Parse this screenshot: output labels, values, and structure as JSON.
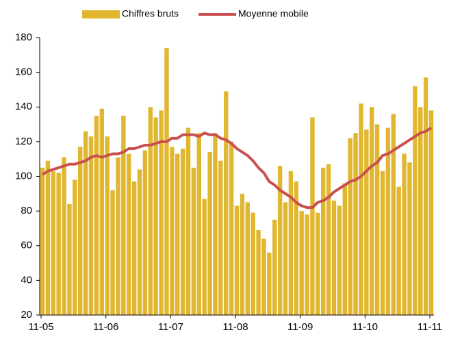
{
  "chart_data": {
    "type": "bar-line",
    "categories": [
      "11-05",
      null,
      null,
      null,
      null,
      null,
      null,
      null,
      null,
      null,
      null,
      null,
      "11-06",
      null,
      null,
      null,
      null,
      null,
      null,
      null,
      null,
      null,
      null,
      null,
      "11-07",
      null,
      null,
      null,
      null,
      null,
      null,
      null,
      null,
      null,
      null,
      null,
      "11-08",
      null,
      null,
      null,
      null,
      null,
      null,
      null,
      null,
      null,
      null,
      null,
      "11-09",
      null,
      null,
      null,
      null,
      null,
      null,
      null,
      null,
      null,
      null,
      null,
      "11-10",
      null,
      null,
      null,
      null,
      null,
      null,
      null,
      null,
      null,
      null,
      null,
      "11-11"
    ],
    "series": [
      {
        "name": "Chiffres bruts",
        "color": "#e0b72f",
        "kind": "bar",
        "values": [
          105,
          109,
          103,
          102,
          111,
          84,
          98,
          117,
          126,
          123,
          135,
          139,
          123,
          92,
          111,
          135,
          113,
          97,
          104,
          115,
          140,
          134,
          138,
          174,
          117,
          113,
          116,
          128,
          105,
          125,
          87,
          114,
          125,
          109,
          149,
          120,
          83,
          90,
          85,
          79,
          69,
          64,
          56,
          75,
          106,
          85,
          103,
          97,
          80,
          78,
          134,
          79,
          105,
          107,
          86,
          83,
          96,
          122,
          125,
          142,
          127,
          140,
          130,
          103,
          128,
          136,
          94,
          113,
          108,
          152,
          140,
          157,
          138
        ]
      },
      {
        "name": "Moyenne mobile",
        "color": "#c9504f",
        "kind": "line",
        "values": [
          101,
          103,
          104,
          105,
          106,
          107,
          107,
          108,
          109,
          111,
          112,
          111,
          112,
          113,
          113,
          114,
          116,
          116,
          117,
          118,
          118,
          119,
          120,
          120,
          122,
          122,
          124,
          124,
          124,
          123,
          125,
          124,
          124,
          122,
          121,
          119,
          116,
          114,
          112,
          109,
          105,
          102,
          97,
          95,
          92,
          90,
          88,
          85,
          83,
          82,
          82,
          85,
          86,
          88,
          91,
          93,
          95,
          97,
          98,
          100,
          103,
          106,
          108,
          112,
          113,
          115,
          117,
          119,
          121,
          123,
          125,
          126,
          128
        ]
      }
    ],
    "ylim": [
      20,
      180
    ],
    "yticks": [
      20,
      40,
      60,
      80,
      100,
      120,
      140,
      160,
      180
    ]
  }
}
